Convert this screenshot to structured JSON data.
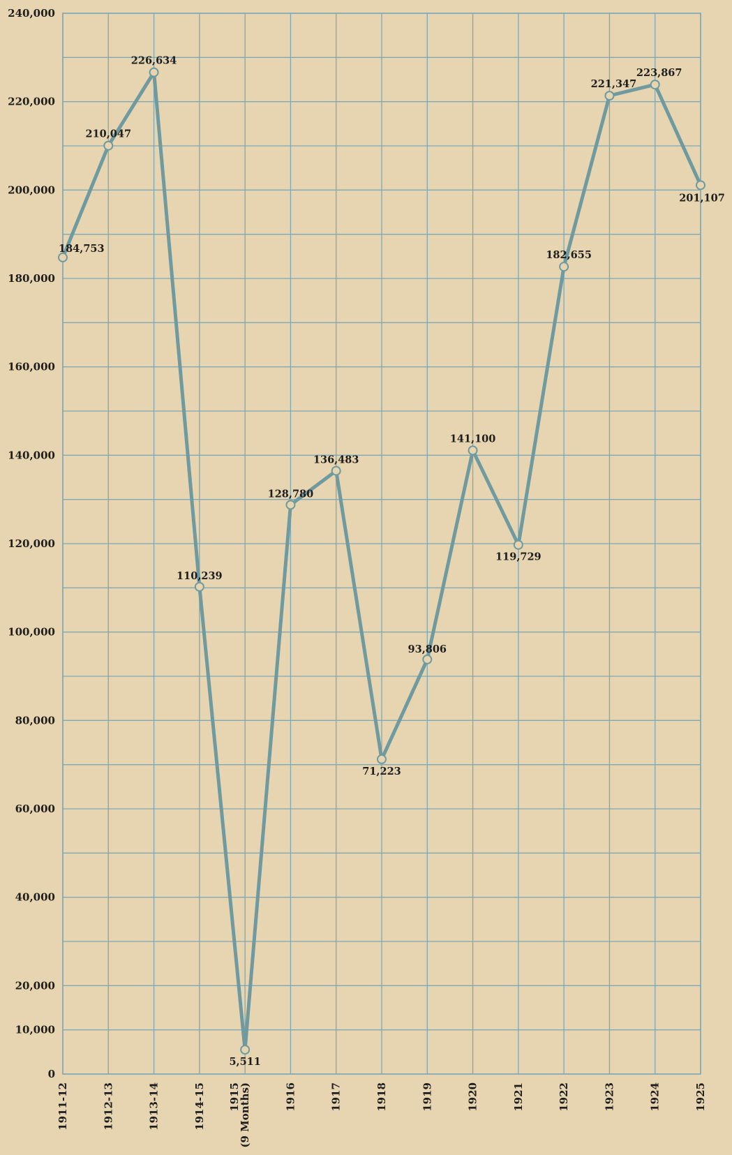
{
  "chart_data": {
    "type": "line",
    "title": "",
    "xlabel": "",
    "ylabel": "",
    "categories": [
      "1911-12",
      "1912-13",
      "1913-14",
      "1914-15",
      "1915\n(9 Months)",
      "1916",
      "1917",
      "1918",
      "1919",
      "1920",
      "1921",
      "1922",
      "1923",
      "1924",
      "1925"
    ],
    "values": [
      184753,
      210047,
      226634,
      110239,
      5511,
      128780,
      136483,
      71223,
      93806,
      141100,
      119729,
      182655,
      221347,
      223867,
      201107
    ],
    "data_labels": [
      "184,753",
      "210,047",
      "226,634",
      "110,239",
      "5,511",
      "128,780",
      "136,483",
      "71,223",
      "93,806",
      "141,100",
      "119,729",
      "182,655",
      "221,347",
      "223,867",
      "201,107"
    ],
    "yticks": [
      {
        "value": 0,
        "label": "0"
      },
      {
        "value": 10000,
        "label": "10,000"
      },
      {
        "value": 20000,
        "label": "20,000"
      },
      {
        "value": 40000,
        "label": "40,000"
      },
      {
        "value": 60000,
        "label": "60,000"
      },
      {
        "value": 80000,
        "label": "80,000"
      },
      {
        "value": 100000,
        "label": "100,000"
      },
      {
        "value": 120000,
        "label": "120,000"
      },
      {
        "value": 140000,
        "label": "140,000"
      },
      {
        "value": 160000,
        "label": "160,000"
      },
      {
        "value": 180000,
        "label": "180,000"
      },
      {
        "value": 200000,
        "label": "200,000"
      },
      {
        "value": 220000,
        "label": "220,000"
      },
      {
        "value": 240000,
        "label": "240,000"
      }
    ],
    "ylim": [
      0,
      240000
    ],
    "grid": true,
    "colors": {
      "background": "#e6d5b0",
      "grid": "#7fa8b4",
      "line": "#6f9a9f",
      "text": "#1e1e1e"
    }
  }
}
